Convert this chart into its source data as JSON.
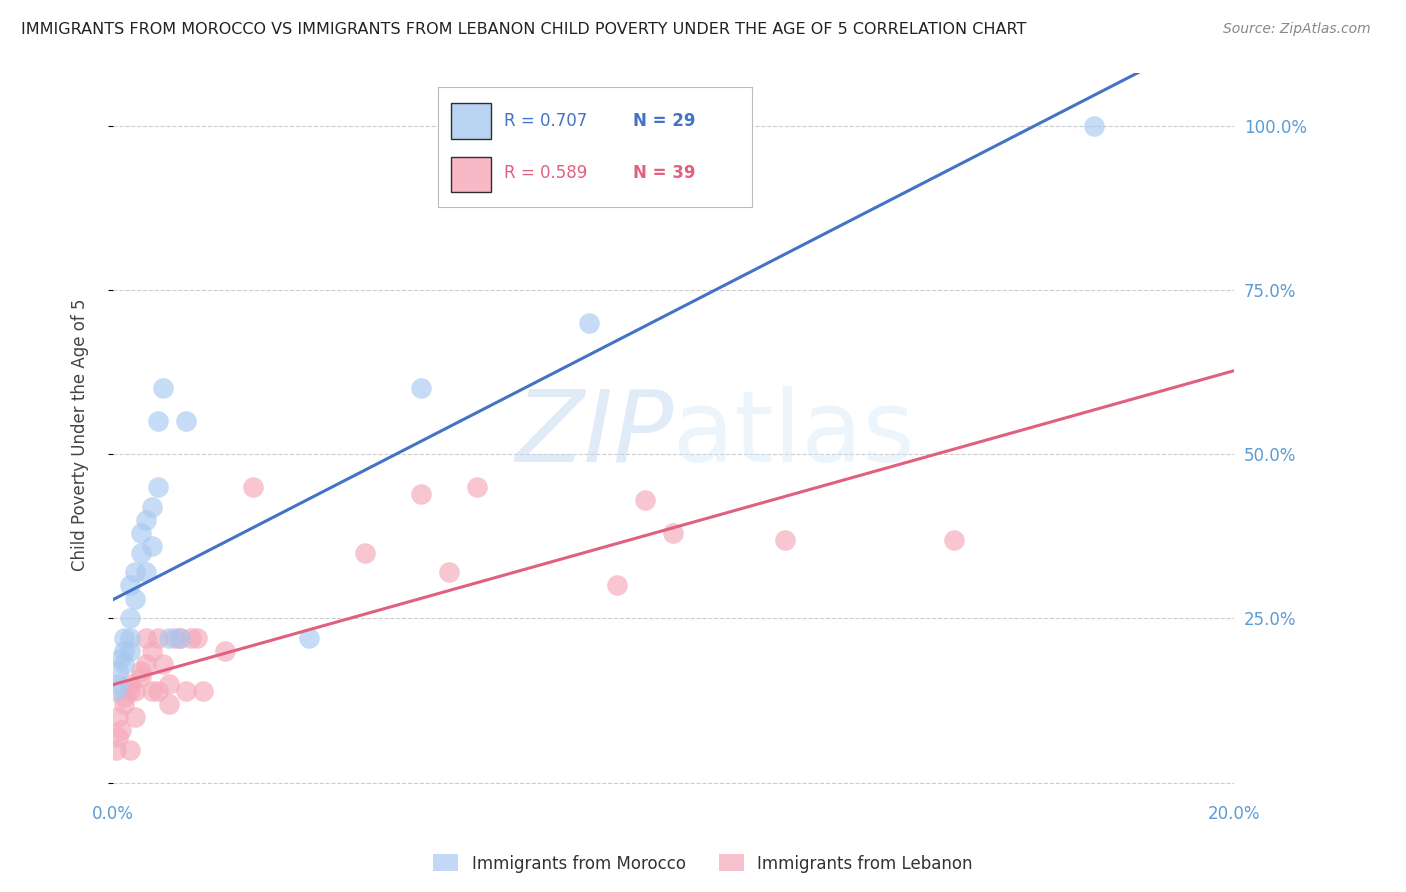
{
  "title": "IMMIGRANTS FROM MOROCCO VS IMMIGRANTS FROM LEBANON CHILD POVERTY UNDER THE AGE OF 5 CORRELATION CHART",
  "source": "Source: ZipAtlas.com",
  "ylabel": "Child Poverty Under the Age of 5",
  "xlim": [
    0.0,
    0.2
  ],
  "ylim": [
    -0.02,
    1.08
  ],
  "yticks": [
    0.0,
    0.25,
    0.5,
    0.75,
    1.0
  ],
  "ytick_labels": [
    "",
    "25.0%",
    "50.0%",
    "75.0%",
    "100.0%"
  ],
  "xticks": [
    0.0,
    0.05,
    0.1,
    0.15,
    0.2
  ],
  "xtick_labels": [
    "0.0%",
    "",
    "",
    "",
    "20.0%"
  ],
  "morocco_color": "#a8c8f0",
  "lebanon_color": "#f5a8b8",
  "morocco_line_color": "#4472c4",
  "lebanon_line_color": "#e06080",
  "morocco_R": 0.707,
  "morocco_N": 29,
  "lebanon_R": 0.589,
  "lebanon_N": 39,
  "legend_label_morocco": "Immigrants from Morocco",
  "legend_label_lebanon": "Immigrants from Lebanon",
  "watermark_zip": "ZIP",
  "watermark_atlas": "atlas",
  "background_color": "#ffffff",
  "grid_color": "#cccccc",
  "title_color": "#222222",
  "tick_color": "#5b9bd5",
  "source_color": "#888888",
  "morocco_x": [
    0.0005,
    0.001,
    0.001,
    0.0015,
    0.002,
    0.002,
    0.002,
    0.003,
    0.003,
    0.003,
    0.003,
    0.004,
    0.004,
    0.005,
    0.005,
    0.006,
    0.006,
    0.007,
    0.007,
    0.008,
    0.008,
    0.009,
    0.01,
    0.012,
    0.013,
    0.035,
    0.055,
    0.085,
    0.175
  ],
  "morocco_y": [
    0.14,
    0.15,
    0.17,
    0.19,
    0.18,
    0.2,
    0.22,
    0.2,
    0.22,
    0.25,
    0.3,
    0.28,
    0.32,
    0.35,
    0.38,
    0.4,
    0.32,
    0.42,
    0.36,
    0.55,
    0.45,
    0.6,
    0.22,
    0.22,
    0.55,
    0.22,
    0.6,
    0.7,
    1.0
  ],
  "lebanon_x": [
    0.0005,
    0.001,
    0.001,
    0.0015,
    0.002,
    0.002,
    0.003,
    0.003,
    0.003,
    0.004,
    0.004,
    0.005,
    0.005,
    0.006,
    0.006,
    0.007,
    0.007,
    0.008,
    0.008,
    0.009,
    0.01,
    0.01,
    0.011,
    0.012,
    0.013,
    0.014,
    0.015,
    0.016,
    0.02,
    0.025,
    0.045,
    0.055,
    0.06,
    0.065,
    0.09,
    0.095,
    0.1,
    0.12,
    0.15
  ],
  "lebanon_y": [
    0.05,
    0.07,
    0.1,
    0.08,
    0.12,
    0.13,
    0.05,
    0.14,
    0.15,
    0.14,
    0.1,
    0.16,
    0.17,
    0.18,
    0.22,
    0.2,
    0.14,
    0.22,
    0.14,
    0.18,
    0.12,
    0.15,
    0.22,
    0.22,
    0.14,
    0.22,
    0.22,
    0.14,
    0.2,
    0.45,
    0.35,
    0.44,
    0.32,
    0.45,
    0.3,
    0.43,
    0.38,
    0.37,
    0.37
  ]
}
